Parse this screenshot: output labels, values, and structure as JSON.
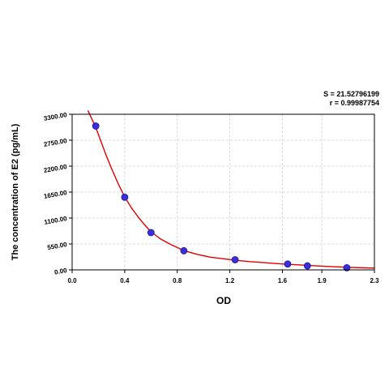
{
  "chart_data": {
    "type": "scatter",
    "xlabel": "OD",
    "ylabel": "The concentration of E2 (pg/mL)",
    "xlim": [
      0,
      2.3
    ],
    "ylim": [
      0,
      3300
    ],
    "x_ticks": [
      "0.0",
      "0.4",
      "0.8",
      "1.2",
      "1.6",
      "1.9",
      "2.3"
    ],
    "x_tick_values": [
      0,
      0.4,
      0.8,
      1.2,
      1.6,
      1.9,
      2.3
    ],
    "y_ticks": [
      "0.00",
      "550.00",
      "1100.00",
      "1650.00",
      "2200.00",
      "2750.00",
      "3300.00"
    ],
    "y_tick_values": [
      0,
      550,
      1100,
      1650,
      2200,
      2750,
      3300
    ],
    "grid": true,
    "points": [
      {
        "x": 0.18,
        "y": 3050
      },
      {
        "x": 0.4,
        "y": 1540
      },
      {
        "x": 0.6,
        "y": 790
      },
      {
        "x": 0.85,
        "y": 405
      },
      {
        "x": 1.24,
        "y": 215
      },
      {
        "x": 1.64,
        "y": 125
      },
      {
        "x": 1.79,
        "y": 85
      },
      {
        "x": 2.09,
        "y": 45
      }
    ],
    "fit_curve": {
      "x": [
        0.12,
        0.15,
        0.18,
        0.22,
        0.26,
        0.3,
        0.35,
        0.4,
        0.45,
        0.5,
        0.55,
        0.6,
        0.67,
        0.75,
        0.85,
        0.95,
        1.05,
        1.15,
        1.24,
        1.35,
        1.45,
        1.55,
        1.64,
        1.79,
        1.95,
        2.09,
        2.2,
        2.3
      ],
      "y": [
        3380,
        3200,
        3020,
        2720,
        2420,
        2150,
        1830,
        1550,
        1320,
        1130,
        960,
        810,
        660,
        540,
        410,
        330,
        270,
        235,
        205,
        175,
        155,
        135,
        120,
        95,
        72,
        55,
        45,
        38
      ]
    },
    "annotations": {
      "s": "S = 21.52796199",
      "r": "r = 0.99987754"
    },
    "colors": {
      "curve": "#e00000",
      "point_fill": "#3a2fd8",
      "point_stroke": "#1a12a0",
      "grid": "#d0d0d0"
    }
  }
}
